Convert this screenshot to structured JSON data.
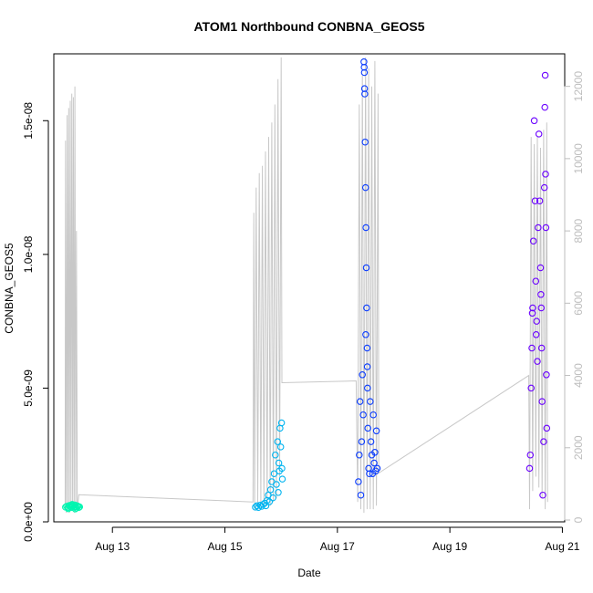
{
  "chart_data": {
    "type": "scatter",
    "title": "ATOM1 Northbound CONBNA_GEOS5",
    "xlabel": "Date",
    "ylabel": "CONBNA_GEOS5",
    "xlim": [
      "2016-08-11T23:00",
      "2016-08-21T01:00"
    ],
    "ylim": [
      0,
      1.75e-08
    ],
    "y2lim": [
      -50,
      12900
    ],
    "x_ticks": [
      {
        "value": "2016-08-13",
        "label": "Aug 13"
      },
      {
        "value": "2016-08-15",
        "label": "Aug 15"
      },
      {
        "value": "2016-08-17",
        "label": "Aug 17"
      },
      {
        "value": "2016-08-19",
        "label": "Aug 19"
      },
      {
        "value": "2016-08-21",
        "label": "Aug 21"
      }
    ],
    "y_ticks": [
      {
        "value": 0,
        "label": "0.0e+00"
      },
      {
        "value": 5e-09,
        "label": "5.0e-09"
      },
      {
        "value": 1e-08,
        "label": "1.0e-08"
      },
      {
        "value": 1.5e-08,
        "label": "1.5e-08"
      }
    ],
    "y2_ticks": [
      0,
      2000,
      4000,
      6000,
      8000,
      10000,
      12000
    ],
    "colors": {
      "flight1": "#00f5b0",
      "flight2": "#00b4f0",
      "flight3": "#0a3cff",
      "flight4": "#6a00ff",
      "altitude": "#c8c8c8",
      "axis": "#000000",
      "right_axis": "#bdbdbd"
    },
    "grid": false,
    "series": [
      {
        "color": "#00f5b0",
        "points": [
          [
            "2016-08-12T04:00",
            5.5e-10
          ],
          [
            "2016-08-12T04:30",
            5.8e-10
          ],
          [
            "2016-08-12T05:00",
            5.3e-10
          ],
          [
            "2016-08-12T05:30",
            6.1e-10
          ],
          [
            "2016-08-12T06:00",
            5.6e-10
          ],
          [
            "2016-08-12T06:20",
            6.2e-10
          ],
          [
            "2016-08-12T06:40",
            5.4e-10
          ],
          [
            "2016-08-12T07:00",
            5.9e-10
          ],
          [
            "2016-08-12T07:20",
            6e-10
          ],
          [
            "2016-08-12T07:40",
            5.5e-10
          ],
          [
            "2016-08-12T08:00",
            6.3e-10
          ],
          [
            "2016-08-12T08:20",
            5.7e-10
          ],
          [
            "2016-08-12T08:40",
            5.2e-10
          ],
          [
            "2016-08-12T09:00",
            6e-10
          ],
          [
            "2016-08-12T09:20",
            5.8e-10
          ],
          [
            "2016-08-12T09:40",
            5.4e-10
          ],
          [
            "2016-08-12T10:00",
            5.6e-10
          ],
          [
            "2016-08-12T05:10",
            4.9e-10
          ],
          [
            "2016-08-12T06:50",
            6.5e-10
          ],
          [
            "2016-08-12T08:10",
            4.8e-10
          ]
        ]
      },
      {
        "color": "#00b4f0",
        "points": [
          [
            "2016-08-15T13:00",
            5.5e-10
          ],
          [
            "2016-08-15T13:40",
            6e-10
          ],
          [
            "2016-08-15T14:20",
            5.4e-10
          ],
          [
            "2016-08-15T15:00",
            6.2e-10
          ],
          [
            "2016-08-15T15:40",
            5.8e-10
          ],
          [
            "2016-08-15T16:20",
            6.5e-10
          ],
          [
            "2016-08-15T17:00",
            7e-10
          ],
          [
            "2016-08-15T17:30",
            6e-10
          ],
          [
            "2016-08-15T18:00",
            8e-10
          ],
          [
            "2016-08-15T18:30",
            1e-09
          ],
          [
            "2016-08-15T19:00",
            7.5e-10
          ],
          [
            "2016-08-15T19:30",
            1.2e-09
          ],
          [
            "2016-08-15T20:00",
            1.5e-09
          ],
          [
            "2016-08-15T20:30",
            9e-10
          ],
          [
            "2016-08-15T21:00",
            1.8e-09
          ],
          [
            "2016-08-15T21:30",
            2.5e-09
          ],
          [
            "2016-08-15T22:00",
            1.4e-09
          ],
          [
            "2016-08-15T22:30",
            3e-09
          ],
          [
            "2016-08-15T23:00",
            2.2e-09
          ],
          [
            "2016-08-15T23:30",
            3.5e-09
          ],
          [
            "2016-08-15T23:50",
            2.8e-09
          ],
          [
            "2016-08-16T00:10",
            3.7e-09
          ],
          [
            "2016-08-16T00:20",
            2e-09
          ],
          [
            "2016-08-16T00:30",
            1.6e-09
          ],
          [
            "2016-08-15T22:45",
            1.1e-09
          ],
          [
            "2016-08-15T23:15",
            1.9e-09
          ]
        ]
      },
      {
        "color": "#0a3cff",
        "points": [
          [
            "2016-08-17T09:00",
            1.5e-09
          ],
          [
            "2016-08-17T09:20",
            2.5e-09
          ],
          [
            "2016-08-17T09:40",
            4.5e-09
          ],
          [
            "2016-08-17T10:00",
            1e-09
          ],
          [
            "2016-08-17T10:20",
            3e-09
          ],
          [
            "2016-08-17T10:40",
            5.5e-09
          ],
          [
            "2016-08-17T11:00",
            4e-09
          ],
          [
            "2016-08-17T11:20",
            1.72e-08
          ],
          [
            "2016-08-17T11:30",
            1.68e-08
          ],
          [
            "2016-08-17T11:40",
            1.6e-08
          ],
          [
            "2016-08-17T11:50",
            1.42e-08
          ],
          [
            "2016-08-17T12:00",
            1.25e-08
          ],
          [
            "2016-08-17T12:10",
            1.1e-08
          ],
          [
            "2016-08-17T12:20",
            9.5e-09
          ],
          [
            "2016-08-17T12:30",
            8e-09
          ],
          [
            "2016-08-17T12:40",
            6.5e-09
          ],
          [
            "2016-08-17T12:50",
            5e-09
          ],
          [
            "2016-08-17T13:00",
            3.5e-09
          ],
          [
            "2016-08-17T13:20",
            2e-09
          ],
          [
            "2016-08-17T13:40",
            1.8e-09
          ],
          [
            "2016-08-17T14:00",
            4.5e-09
          ],
          [
            "2016-08-17T14:20",
            3e-09
          ],
          [
            "2016-08-17T14:40",
            2.5e-09
          ],
          [
            "2016-08-17T15:00",
            1.8e-09
          ],
          [
            "2016-08-17T15:20",
            4e-09
          ],
          [
            "2016-08-17T15:40",
            2.2e-09
          ],
          [
            "2016-08-17T16:00",
            2.6e-09
          ],
          [
            "2016-08-17T16:20",
            1.9e-09
          ],
          [
            "2016-08-17T16:40",
            3.4e-09
          ],
          [
            "2016-08-17T17:00",
            2e-09
          ],
          [
            "2016-08-17T11:25",
            1.7e-08
          ],
          [
            "2016-08-17T11:35",
            1.62e-08
          ],
          [
            "2016-08-17T12:05",
            7e-09
          ],
          [
            "2016-08-17T12:45",
            5.8e-09
          ]
        ]
      },
      {
        "color": "#6a00ff",
        "points": [
          [
            "2016-08-20T10:00",
            2e-09
          ],
          [
            "2016-08-20T10:20",
            2.5e-09
          ],
          [
            "2016-08-20T10:40",
            5e-09
          ],
          [
            "2016-08-20T11:00",
            6.5e-09
          ],
          [
            "2016-08-20T11:20",
            8e-09
          ],
          [
            "2016-08-20T11:40",
            1.05e-08
          ],
          [
            "2016-08-20T12:00",
            1.5e-08
          ],
          [
            "2016-08-20T12:20",
            1.2e-08
          ],
          [
            "2016-08-20T12:40",
            9e-09
          ],
          [
            "2016-08-20T13:00",
            7.5e-09
          ],
          [
            "2016-08-20T13:20",
            6e-09
          ],
          [
            "2016-08-20T13:40",
            1.1e-08
          ],
          [
            "2016-08-20T14:00",
            1.45e-08
          ],
          [
            "2016-08-20T14:20",
            1.2e-08
          ],
          [
            "2016-08-20T14:40",
            9.5e-09
          ],
          [
            "2016-08-20T15:00",
            8e-09
          ],
          [
            "2016-08-20T15:20",
            4.5e-09
          ],
          [
            "2016-08-20T15:40",
            1e-09
          ],
          [
            "2016-08-20T16:00",
            3e-09
          ],
          [
            "2016-08-20T16:20",
            1.25e-08
          ],
          [
            "2016-08-20T16:30",
            1.55e-08
          ],
          [
            "2016-08-20T16:40",
            1.67e-08
          ],
          [
            "2016-08-20T16:50",
            1.3e-08
          ],
          [
            "2016-08-20T17:00",
            1.1e-08
          ],
          [
            "2016-08-20T17:10",
            5.5e-09
          ],
          [
            "2016-08-20T17:20",
            3.5e-09
          ],
          [
            "2016-08-20T12:50",
            7e-09
          ],
          [
            "2016-08-20T14:50",
            8.5e-09
          ],
          [
            "2016-08-20T11:10",
            7.8e-09
          ],
          [
            "2016-08-20T15:10",
            6.5e-09
          ]
        ]
      }
    ],
    "altitude_line": [
      [
        "2016-08-12T03:50",
        300
      ],
      [
        "2016-08-12T04:00",
        10500
      ],
      [
        "2016-08-12T04:20",
        200
      ],
      [
        "2016-08-12T04:40",
        11200
      ],
      [
        "2016-08-12T05:00",
        300
      ],
      [
        "2016-08-12T05:20",
        11400
      ],
      [
        "2016-08-12T05:40",
        200
      ],
      [
        "2016-08-12T06:00",
        11600
      ],
      [
        "2016-08-12T06:20",
        400
      ],
      [
        "2016-08-12T06:40",
        11800
      ],
      [
        "2016-08-12T07:00",
        300
      ],
      [
        "2016-08-12T07:20",
        11700
      ],
      [
        "2016-08-12T07:40",
        200
      ],
      [
        "2016-08-12T08:00",
        12000
      ],
      [
        "2016-08-12T08:20",
        300
      ],
      [
        "2016-08-12T08:40",
        8000
      ],
      [
        "2016-08-12T09:00",
        300
      ],
      [
        "2016-08-12T09:40",
        700
      ],
      [
        "2016-08-15T12:00",
        500
      ],
      [
        "2016-08-15T12:20",
        8500
      ],
      [
        "2016-08-15T12:40",
        300
      ],
      [
        "2016-08-15T13:20",
        9200
      ],
      [
        "2016-08-15T14:00",
        400
      ],
      [
        "2016-08-15T14:40",
        9600
      ],
      [
        "2016-08-15T15:20",
        400
      ],
      [
        "2016-08-15T16:00",
        9800
      ],
      [
        "2016-08-15T16:40",
        400
      ],
      [
        "2016-08-15T17:20",
        10200
      ],
      [
        "2016-08-15T18:00",
        400
      ],
      [
        "2016-08-15T18:40",
        10600
      ],
      [
        "2016-08-15T19:20",
        400
      ],
      [
        "2016-08-15T20:00",
        11000
      ],
      [
        "2016-08-15T20:40",
        500
      ],
      [
        "2016-08-15T21:20",
        11500
      ],
      [
        "2016-08-15T22:00",
        600
      ],
      [
        "2016-08-15T22:40",
        12200
      ],
      [
        "2016-08-15T23:20",
        1200
      ],
      [
        "2016-08-16T00:00",
        12800
      ],
      [
        "2016-08-16T00:20",
        3800
      ],
      [
        "2016-08-17T08:00",
        3850
      ],
      [
        "2016-08-17T08:40",
        500
      ],
      [
        "2016-08-17T09:20",
        11500
      ],
      [
        "2016-08-17T10:00",
        300
      ],
      [
        "2016-08-17T10:40",
        12300
      ],
      [
        "2016-08-17T11:20",
        200
      ],
      [
        "2016-08-17T12:00",
        12800
      ],
      [
        "2016-08-17T12:40",
        300
      ],
      [
        "2016-08-17T13:20",
        12500
      ],
      [
        "2016-08-17T14:00",
        300
      ],
      [
        "2016-08-17T14:40",
        12000
      ],
      [
        "2016-08-17T15:20",
        300
      ],
      [
        "2016-08-17T16:00",
        12700
      ],
      [
        "2016-08-17T16:40",
        400
      ],
      [
        "2016-08-17T17:20",
        11800
      ],
      [
        "2016-08-17T17:40",
        1300
      ],
      [
        "2016-08-20T09:40",
        4000
      ],
      [
        "2016-08-20T10:00",
        300
      ],
      [
        "2016-08-20T10:40",
        10600
      ],
      [
        "2016-08-20T11:20",
        800
      ],
      [
        "2016-08-20T12:00",
        10400
      ],
      [
        "2016-08-20T12:40",
        1200
      ],
      [
        "2016-08-20T13:20",
        10600
      ],
      [
        "2016-08-20T14:00",
        900
      ],
      [
        "2016-08-20T14:40",
        10300
      ],
      [
        "2016-08-20T15:20",
        600
      ],
      [
        "2016-08-20T16:00",
        10800
      ],
      [
        "2016-08-20T16:40",
        300
      ],
      [
        "2016-08-20T17:20",
        11000
      ],
      [
        "2016-08-20T17:40",
        500
      ]
    ]
  }
}
